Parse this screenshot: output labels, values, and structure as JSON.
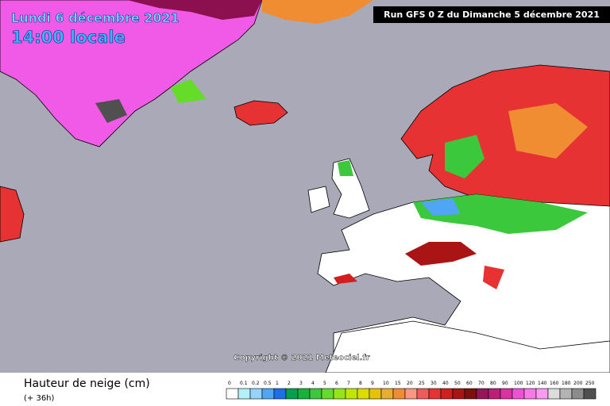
{
  "header": {
    "date": "Lundi 6 décembre 2021",
    "time": "14:00 locale",
    "run": "Run GFS 0 Z du Dimanche 5 décembre 2021"
  },
  "copyright": "Copyright © 2021 Meteociel.fr",
  "legend": {
    "title": "Hauteur de neige (cm)",
    "lead": "(+ 36h)",
    "items": [
      {
        "label": "0",
        "color": "#ffffff"
      },
      {
        "label": "0.1",
        "color": "#b4f0fa"
      },
      {
        "label": "0.2",
        "color": "#96d2fa"
      },
      {
        "label": "0.5",
        "color": "#50a5f5"
      },
      {
        "label": "1",
        "color": "#1e6eeb"
      },
      {
        "label": "2",
        "color": "#00a050"
      },
      {
        "label": "3",
        "color": "#14b43c"
      },
      {
        "label": "4",
        "color": "#3cc83c"
      },
      {
        "label": "5",
        "color": "#64dc28"
      },
      {
        "label": "6",
        "color": "#96e614"
      },
      {
        "label": "7",
        "color": "#bee600"
      },
      {
        "label": "8",
        "color": "#dcdc00"
      },
      {
        "label": "9",
        "color": "#e6c300"
      },
      {
        "label": "10",
        "color": "#e6af2d"
      },
      {
        "label": "15",
        "color": "#f08c32"
      },
      {
        "label": "20",
        "color": "#fa9682"
      },
      {
        "label": "25",
        "color": "#f05a5a"
      },
      {
        "label": "30",
        "color": "#e63232"
      },
      {
        "label": "40",
        "color": "#d21e1e"
      },
      {
        "label": "50",
        "color": "#aa1414"
      },
      {
        "label": "60",
        "color": "#7d0f0f"
      },
      {
        "label": "70",
        "color": "#96145a"
      },
      {
        "label": "80",
        "color": "#be1e78"
      },
      {
        "label": "90",
        "color": "#dc32a0"
      },
      {
        "label": "100",
        "color": "#f050d2"
      },
      {
        "label": "120",
        "color": "#f878e6"
      },
      {
        "label": "140",
        "color": "#fa9bf0"
      },
      {
        "label": "160",
        "color": "#dcdcdc"
      },
      {
        "label": "180",
        "color": "#b4b4b4"
      },
      {
        "label": "200",
        "color": "#8c8c8c"
      },
      {
        "label": "250",
        "color": "#505050"
      }
    ]
  }
}
